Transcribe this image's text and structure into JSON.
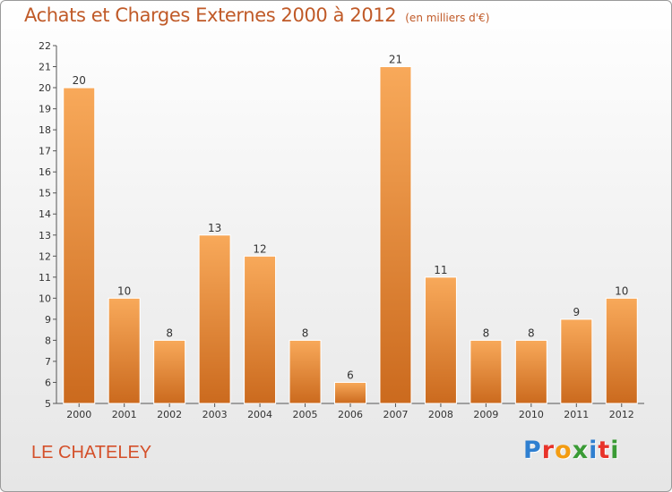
{
  "title": "Achats et Charges Externes 2000 à 2012",
  "subtitle": "(en milliers d'€)",
  "footer_label": "LE CHATELEY",
  "brand": {
    "text": "Proxiti",
    "letter_colors": [
      "#2f7fd0",
      "#e8332a",
      "#f39c12",
      "#3a9b35",
      "#2f7fd0",
      "#e8332a",
      "#3a9b35"
    ]
  },
  "colors": {
    "bar_light": "#f8a95a",
    "bar_dark": "#cb6a1e",
    "title": "#c05a28",
    "footer": "#d4502a"
  },
  "chart_data": {
    "type": "bar",
    "categories": [
      "2000",
      "2001",
      "2002",
      "2003",
      "2004",
      "2005",
      "2006",
      "2007",
      "2008",
      "2009",
      "2010",
      "2011",
      "2012"
    ],
    "values": [
      20,
      10,
      8,
      13,
      12,
      8,
      6,
      21,
      11,
      8,
      8,
      9,
      10
    ],
    "data_labels": [
      "20",
      "10",
      "8",
      "13",
      "12",
      "8",
      "6",
      "21",
      "11",
      "8",
      "8",
      "9",
      "10"
    ],
    "ylim": [
      5,
      22
    ],
    "yticks": [
      "5",
      "6",
      "7",
      "8",
      "9",
      "10",
      "11",
      "12",
      "13",
      "14",
      "15",
      "16",
      "17",
      "18",
      "19",
      "20",
      "21",
      "22"
    ],
    "grid": false,
    "legend": "none"
  }
}
